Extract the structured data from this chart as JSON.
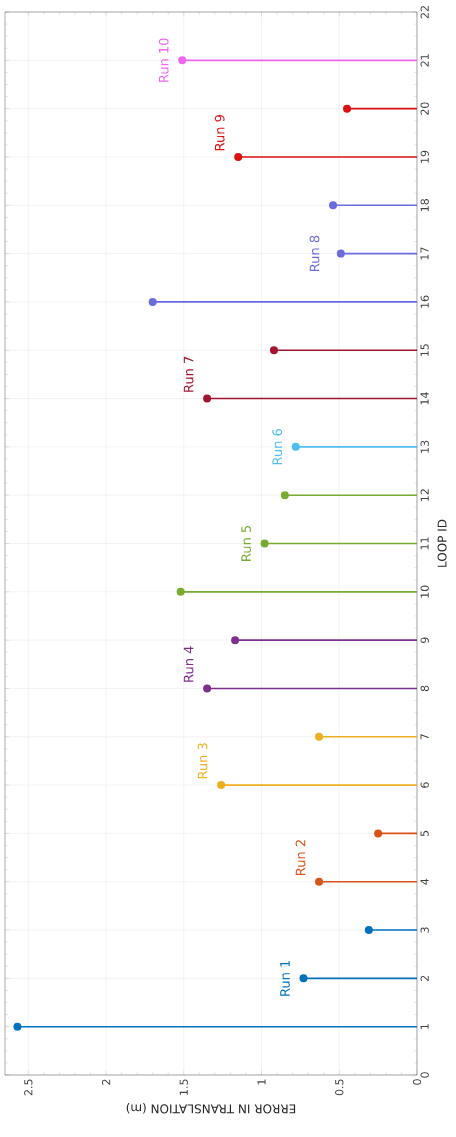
{
  "chart_data": {
    "type": "lollipop",
    "orientation": "horizontal",
    "xlabel": "ERROR IN TRANSLATION (m)",
    "ylabel": "LOOP ID",
    "xlim": [
      2.65,
      0
    ],
    "xticks": [
      0,
      0.5,
      1,
      1.5,
      2,
      2.5
    ],
    "ylim": [
      0,
      22
    ],
    "yticks": [
      0,
      1,
      2,
      3,
      4,
      5,
      6,
      7,
      8,
      9,
      10,
      11,
      12,
      13,
      14,
      15,
      16,
      17,
      18,
      19,
      20,
      21,
      22
    ],
    "grid": true,
    "marker": "circle",
    "series": [
      {
        "name": "Run 1",
        "color": "#0072bd",
        "x": [
          1,
          2,
          3
        ],
        "values": [
          2.57,
          0.73,
          0.31
        ]
      },
      {
        "name": "Run 2",
        "color": "#d95319",
        "x": [
          4,
          5
        ],
        "values": [
          0.63,
          0.25
        ]
      },
      {
        "name": "Run 3",
        "color": "#edb120",
        "x": [
          6,
          7
        ],
        "values": [
          1.26,
          0.63
        ]
      },
      {
        "name": "Run 4",
        "color": "#7e2f8e",
        "x": [
          8,
          9
        ],
        "values": [
          1.35,
          1.17
        ]
      },
      {
        "name": "Run 5",
        "color": "#77ac30",
        "x": [
          10,
          11,
          12
        ],
        "values": [
          1.52,
          0.98,
          0.85
        ]
      },
      {
        "name": "Run 6",
        "color": "#4dbeee",
        "x": [
          13
        ],
        "values": [
          0.78
        ]
      },
      {
        "name": "Run 7",
        "color": "#a2142f",
        "x": [
          14,
          15
        ],
        "values": [
          1.35,
          0.92
        ]
      },
      {
        "name": "Run 8",
        "color": "#6b6be0",
        "x": [
          16,
          17,
          18
        ],
        "values": [
          1.7,
          0.49,
          0.54
        ]
      },
      {
        "name": "Run 9",
        "color": "#dd1111",
        "x": [
          19,
          20
        ],
        "values": [
          1.15,
          0.45
        ]
      },
      {
        "name": "Run 10",
        "color": "#f066f0",
        "x": [
          21
        ],
        "values": [
          1.51
        ]
      }
    ]
  }
}
